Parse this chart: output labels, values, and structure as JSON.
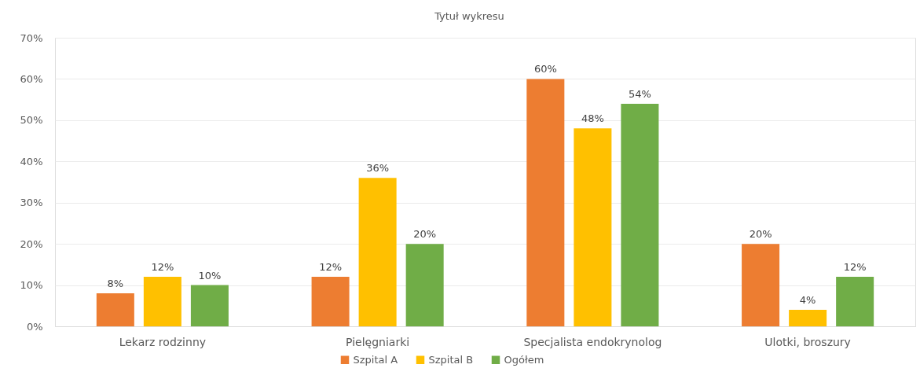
{
  "chart_data": {
    "type": "bar",
    "title": "Tytuł wykresu",
    "categories": [
      "Lekarz rodzinny",
      "Pielęgniarki",
      "Specjalista endokrynolog",
      "Ulotki, broszury"
    ],
    "series": [
      {
        "name": "Szpital A",
        "color": "#ed7d31",
        "values": [
          8,
          12,
          60,
          20
        ],
        "value_labels": [
          "8%",
          "12%",
          "60%",
          "20%"
        ]
      },
      {
        "name": "Szpital B",
        "color": "#ffc000",
        "values": [
          12,
          36,
          48,
          4
        ],
        "value_labels": [
          "12%",
          "36%",
          "48%",
          "4%"
        ]
      },
      {
        "name": "Ogółem",
        "color": "#70ad47",
        "values": [
          10,
          20,
          54,
          12
        ],
        "value_labels": [
          "10%",
          "20%",
          "54%",
          "12%"
        ]
      }
    ],
    "ylim": [
      0,
      70
    ],
    "yticks": [
      {
        "value": 0,
        "label": "0%"
      },
      {
        "value": 10,
        "label": "10%"
      },
      {
        "value": 20,
        "label": "20%"
      },
      {
        "value": 30,
        "label": "30%"
      },
      {
        "value": 40,
        "label": "40%"
      },
      {
        "value": 50,
        "label": "50%"
      },
      {
        "value": 60,
        "label": "60%"
      },
      {
        "value": 70,
        "label": "70%"
      }
    ],
    "grid": "y",
    "legend": "bottom"
  }
}
